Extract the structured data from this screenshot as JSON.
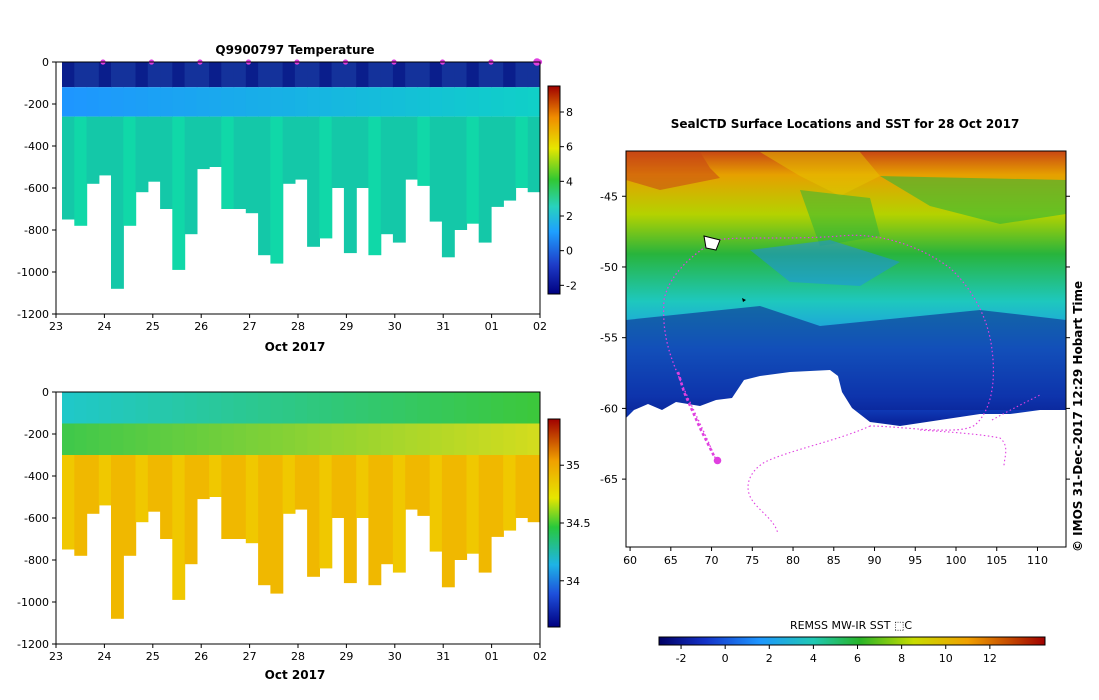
{
  "chart_data": [
    {
      "type": "heatmap",
      "panel": "temperature-profile",
      "title": "Q9900797  Temperature",
      "xlabel": "Oct 2017",
      "x_ticks": [
        "23",
        "24",
        "25",
        "26",
        "27",
        "28",
        "29",
        "30",
        "31",
        "01",
        "02"
      ],
      "x_range": [
        23,
        33
      ],
      "y_ticks": [
        "0",
        "-200",
        "-400",
        "-600",
        "-800",
        "-1000",
        "-1200"
      ],
      "ylim": [
        -1200,
        0
      ],
      "colorbar_ticks": [
        "8",
        "6",
        "4",
        "2",
        "0",
        "-2"
      ],
      "colorbar_range": [
        -2.5,
        9.5
      ],
      "profile_depths_m": [
        750,
        780,
        580,
        540,
        1080,
        780,
        620,
        570,
        700,
        990,
        820,
        510,
        500,
        700,
        700,
        720,
        920,
        960,
        580,
        560,
        880,
        840,
        600,
        910,
        600,
        920,
        820,
        860,
        560,
        590,
        760,
        930,
        800,
        770,
        860,
        690,
        660,
        600,
        620
      ],
      "layers": [
        {
          "name": "surface-cold",
          "top_m": 0,
          "bottom_m": 120,
          "value": -1.5
        },
        {
          "name": "upper-winter-water",
          "top_m": 120,
          "bottom_m": 260,
          "value": 0.5
        },
        {
          "name": "deep-water",
          "top_m": 260,
          "bottom_m": 1200,
          "value": 2.0
        }
      ]
    },
    {
      "type": "heatmap",
      "panel": "salinity-profile",
      "title": "",
      "xlabel": "Oct 2017",
      "x_ticks": [
        "23",
        "24",
        "25",
        "26",
        "27",
        "28",
        "29",
        "30",
        "31",
        "01",
        "02"
      ],
      "x_range": [
        23,
        33
      ],
      "y_ticks": [
        "0",
        "-200",
        "-400",
        "-600",
        "-800",
        "-1000",
        "-1200"
      ],
      "ylim": [
        -1200,
        0
      ],
      "colorbar_ticks": [
        "35",
        "34.5",
        "34"
      ],
      "colorbar_range": [
        33.6,
        35.4
      ],
      "profile_depths_m": [
        750,
        780,
        580,
        540,
        1080,
        780,
        620,
        570,
        700,
        990,
        820,
        510,
        500,
        700,
        700,
        720,
        920,
        960,
        580,
        560,
        880,
        840,
        600,
        910,
        600,
        920,
        820,
        860,
        560,
        590,
        760,
        930,
        800,
        770,
        860,
        690,
        660,
        600,
        620
      ],
      "layers": [
        {
          "name": "surface-fresh",
          "top_m": 0,
          "bottom_m": 150,
          "value": 34.1
        },
        {
          "name": "halocline",
          "top_m": 150,
          "bottom_m": 300,
          "value": 34.5
        },
        {
          "name": "deep-salty",
          "top_m": 300,
          "bottom_m": 1200,
          "value": 34.75
        }
      ]
    },
    {
      "type": "heatmap",
      "panel": "sst-map",
      "title": "SealCTD Surface Locations and SST for 28 Oct 2017",
      "x_ticks": [
        "60",
        "65",
        "70",
        "75",
        "80",
        "85",
        "90",
        "95",
        "100",
        "105",
        "110"
      ],
      "x_range": [
        59.5,
        113.5
      ],
      "y_ticks": [
        "-45",
        "-50",
        "-55",
        "-60",
        "-65"
      ],
      "y_range": [
        -69.8,
        -41.8
      ],
      "colorbar_label": "REMSS MW-IR SST ⬚C",
      "colorbar_ticks": [
        "-2",
        "0",
        "2",
        "4",
        "6",
        "8",
        "10",
        "12"
      ],
      "colorbar_range": [
        -3,
        14.5
      ],
      "track_end": {
        "lon": 70.3,
        "lat": -64.0
      },
      "seal_tracks": "magenta dotted"
    }
  ],
  "credit": "© IMOS 31-Dec-2017 12:29 Hobart Time"
}
